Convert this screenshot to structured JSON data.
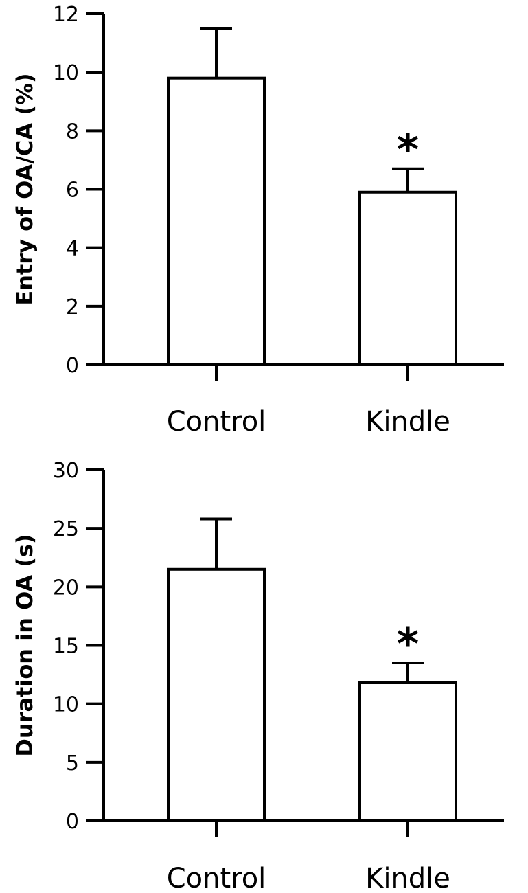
{
  "chart_data": [
    {
      "type": "bar",
      "title": "",
      "xlabel": "",
      "ylabel": "Entry of OA/CA (%)",
      "ylim": [
        0,
        12
      ],
      "yticks": [
        "0",
        "2",
        "4",
        "6",
        "8",
        "10",
        "12"
      ],
      "categories": [
        "Control",
        "Kindle"
      ],
      "values": [
        9.8,
        5.9
      ],
      "error": [
        1.7,
        0.8
      ],
      "significance": [
        "",
        "*"
      ],
      "grid": false
    },
    {
      "type": "bar",
      "title": "",
      "xlabel": "",
      "ylabel": "Duration in OA (s)",
      "ylim": [
        0,
        30
      ],
      "yticks": [
        "0",
        "5",
        "10",
        "15",
        "20",
        "25",
        "30"
      ],
      "categories": [
        "Control",
        "Kindle"
      ],
      "values": [
        21.5,
        11.8
      ],
      "error": [
        4.3,
        1.7
      ],
      "significance": [
        "",
        "*"
      ],
      "grid": false
    }
  ]
}
